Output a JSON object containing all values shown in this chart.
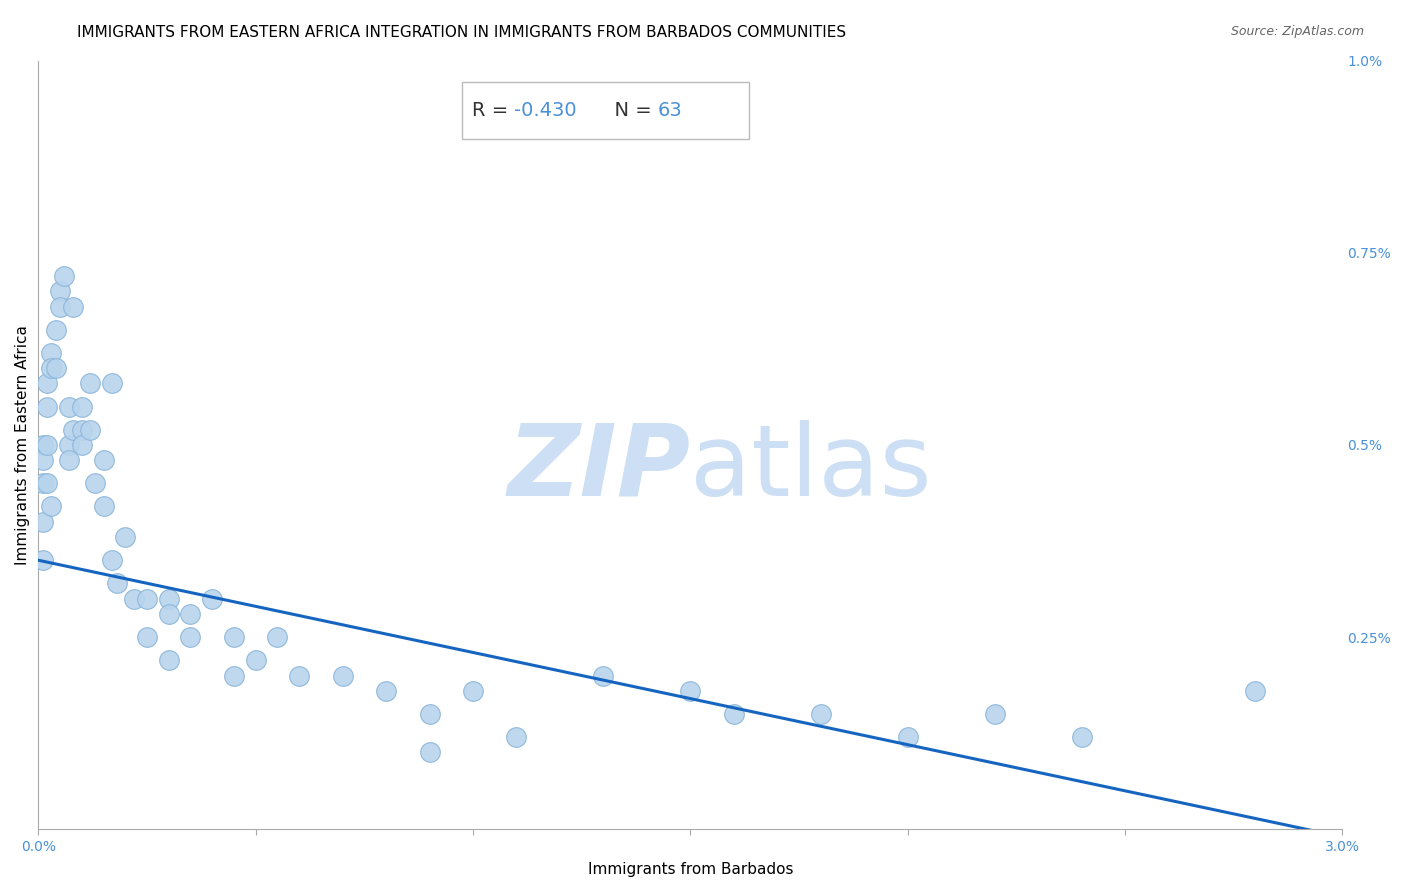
{
  "title": "IMMIGRANTS FROM EASTERN AFRICA INTEGRATION IN IMMIGRANTS FROM BARBADOS COMMUNITIES",
  "source": "Source: ZipAtlas.com",
  "xlabel": "Immigrants from Barbados",
  "ylabel": "Immigrants from Eastern Africa",
  "xlim": [
    0.0,
    0.03
  ],
  "ylim": [
    0.0,
    0.01
  ],
  "trend_x": [
    0.0,
    0.03
  ],
  "trend_y": [
    0.0035,
    -0.0001
  ],
  "scatter_x": [
    0.0001,
    0.0001,
    0.0001,
    0.0001,
    0.0001,
    0.0002,
    0.0002,
    0.0002,
    0.0002,
    0.0003,
    0.0003,
    0.0003,
    0.0004,
    0.0004,
    0.0005,
    0.0005,
    0.0006,
    0.0007,
    0.0007,
    0.0007,
    0.0008,
    0.0008,
    0.001,
    0.001,
    0.001,
    0.0012,
    0.0012,
    0.0013,
    0.0015,
    0.0015,
    0.0017,
    0.0017,
    0.0018,
    0.002,
    0.0022,
    0.0025,
    0.0025,
    0.003,
    0.003,
    0.003,
    0.0035,
    0.0035,
    0.004,
    0.0045,
    0.0045,
    0.005,
    0.0055,
    0.006,
    0.007,
    0.008,
    0.009,
    0.009,
    0.01,
    0.011,
    0.013,
    0.015,
    0.016,
    0.018,
    0.02,
    0.022,
    0.024,
    0.028
  ],
  "scatter_y": [
    0.005,
    0.0048,
    0.0045,
    0.004,
    0.0035,
    0.0058,
    0.0055,
    0.005,
    0.0045,
    0.0062,
    0.006,
    0.0042,
    0.0065,
    0.006,
    0.007,
    0.0068,
    0.0072,
    0.0055,
    0.005,
    0.0048,
    0.0052,
    0.0068,
    0.0055,
    0.0052,
    0.005,
    0.0058,
    0.0052,
    0.0045,
    0.0048,
    0.0042,
    0.0058,
    0.0035,
    0.0032,
    0.0038,
    0.003,
    0.003,
    0.0025,
    0.003,
    0.0028,
    0.0022,
    0.0028,
    0.0025,
    0.003,
    0.0025,
    0.002,
    0.0022,
    0.0025,
    0.002,
    0.002,
    0.0018,
    0.0015,
    0.001,
    0.0018,
    0.0012,
    0.002,
    0.0018,
    0.0015,
    0.0015,
    0.0012,
    0.0015,
    0.0012,
    0.0018
  ],
  "scatter_color": "#b8d4ed",
  "scatter_edge_color": "#89b4d9",
  "trend_color": "#1565c0",
  "watermark_zip_color": "#ccdff5",
  "watermark_atlas_color": "#ccdff5",
  "background_color": "#ffffff",
  "grid_color": "#cccccc",
  "title_fontsize": 11,
  "axis_label_fontsize": 11,
  "tick_fontsize": 10,
  "annotation_fontsize": 14,
  "source_fontsize": 9
}
